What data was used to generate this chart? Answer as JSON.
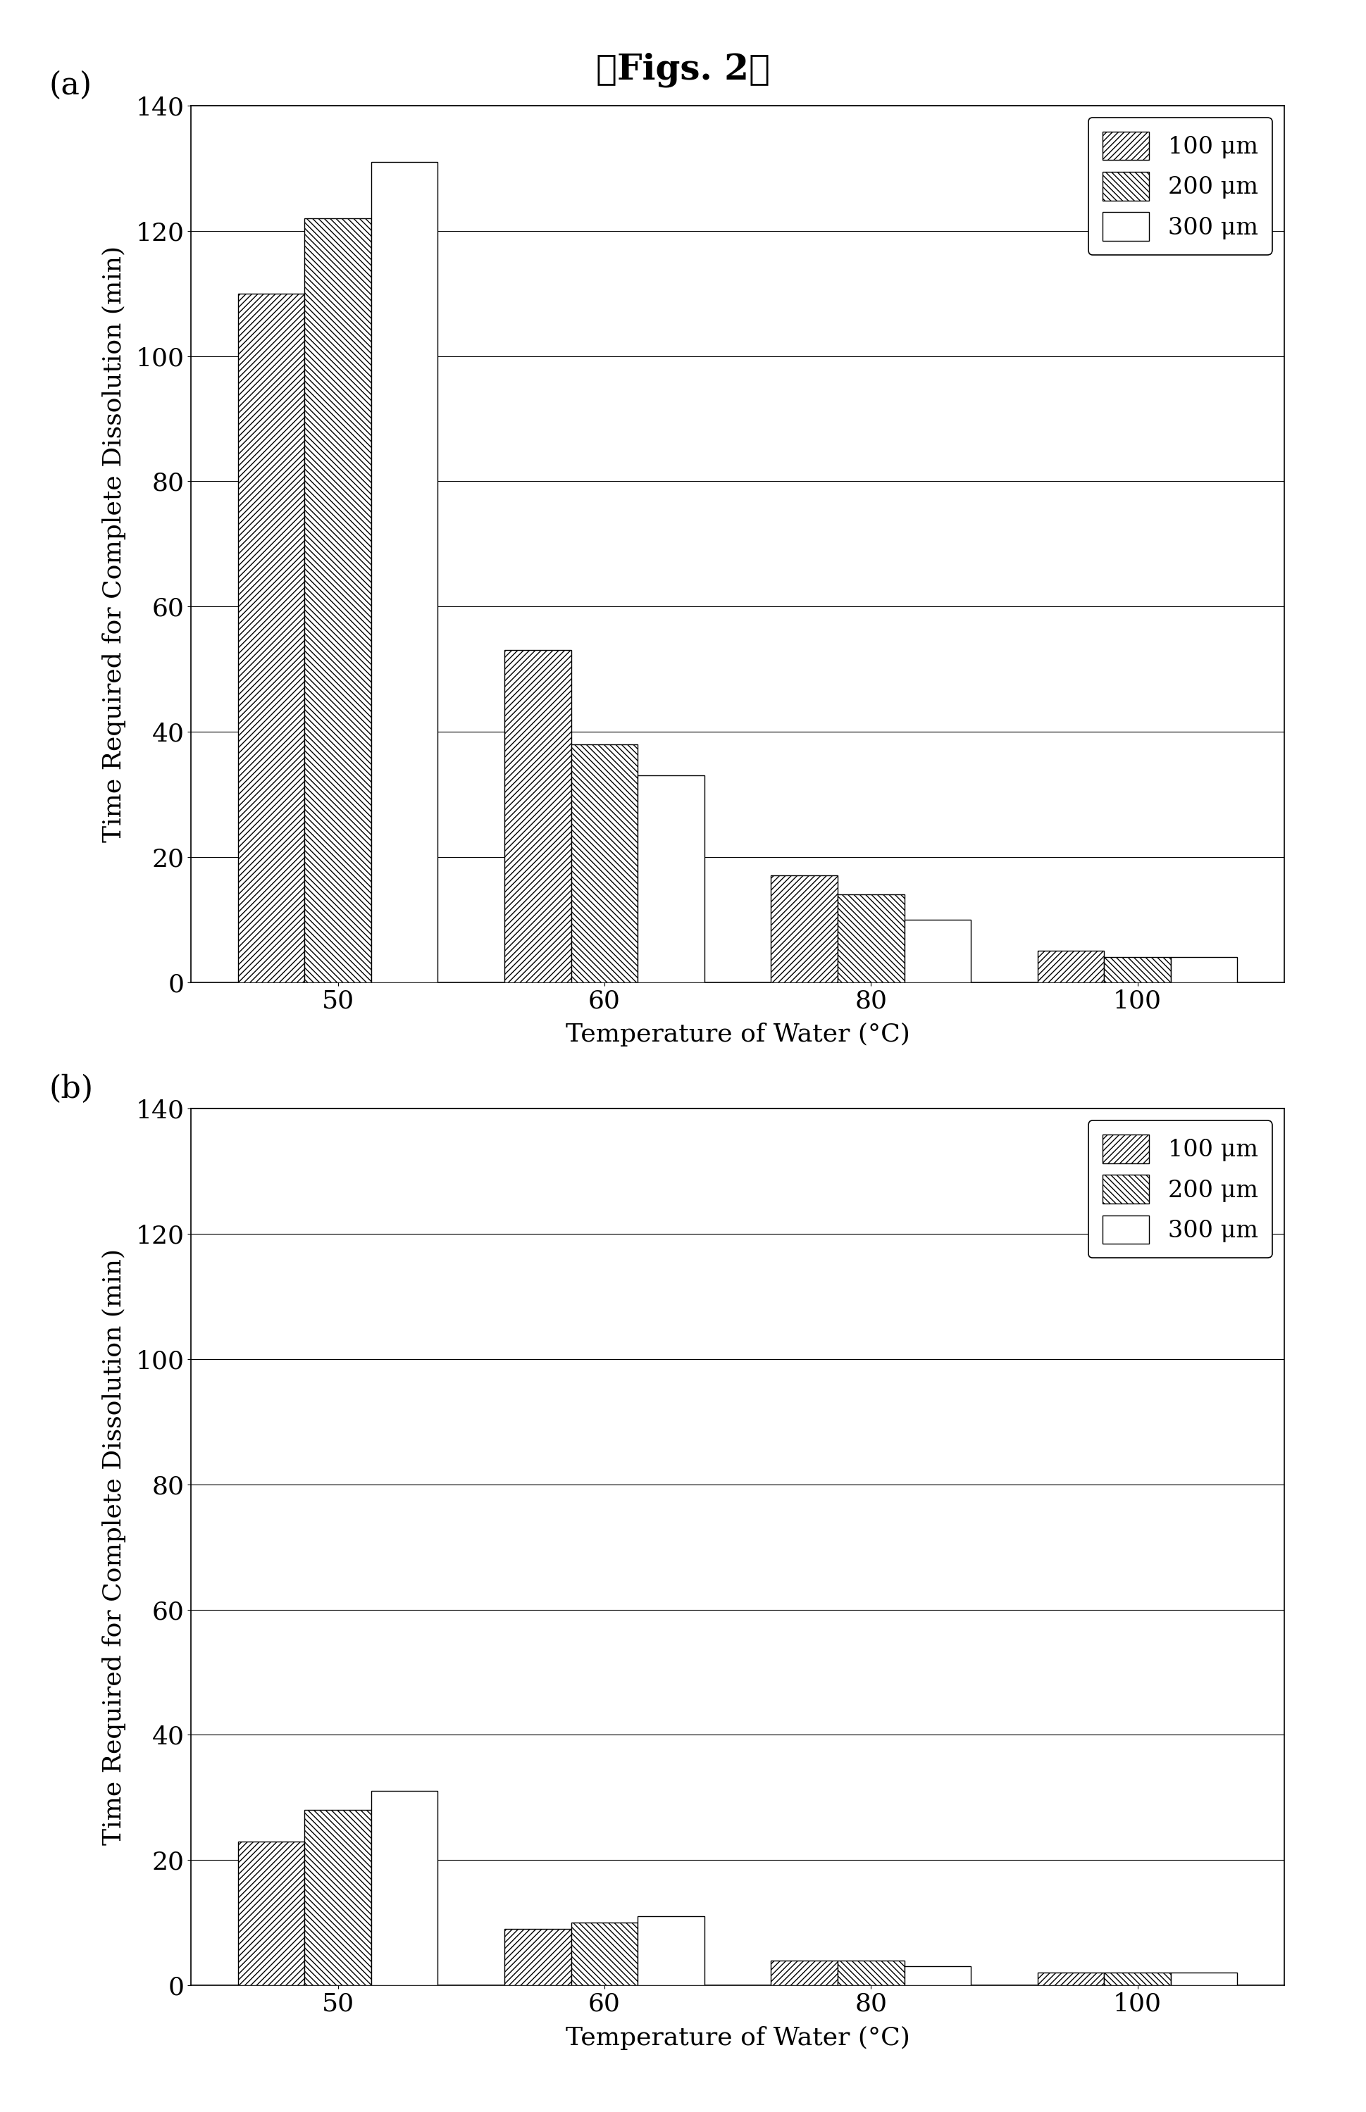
{
  "title": "【Figs. 2】",
  "subplot_labels": [
    "(a)",
    "(b)"
  ],
  "temperatures": [
    50,
    60,
    80,
    100
  ],
  "series_labels": [
    "100 μm",
    "200 μm",
    "300 μm"
  ],
  "data_a": {
    "100um": [
      110,
      53,
      17,
      5
    ],
    "200um": [
      122,
      38,
      14,
      4
    ],
    "300um": [
      131,
      33,
      10,
      4
    ]
  },
  "data_b": {
    "100um": [
      23,
      9,
      4,
      2
    ],
    "200um": [
      28,
      10,
      4,
      2
    ],
    "300um": [
      31,
      11,
      3,
      2
    ]
  },
  "ylim": [
    0,
    140
  ],
  "yticks": [
    0,
    20,
    40,
    60,
    80,
    100,
    120,
    140
  ],
  "xlabel": "Temperature of Water (°C)",
  "ylabel": "Time Required for Complete Dissolution (min)",
  "bar_width": 0.25,
  "hatch_100": "////",
  "hatch_200": "\\\\\\\\",
  "hatch_300": "",
  "facecolor_100": "white",
  "facecolor_200": "white",
  "facecolor_300": "white",
  "edgecolor": "black",
  "background_color": "white",
  "title_fontsize": 36,
  "label_fontsize": 26,
  "tick_fontsize": 26,
  "legend_fontsize": 24,
  "subplot_label_fontsize": 32
}
